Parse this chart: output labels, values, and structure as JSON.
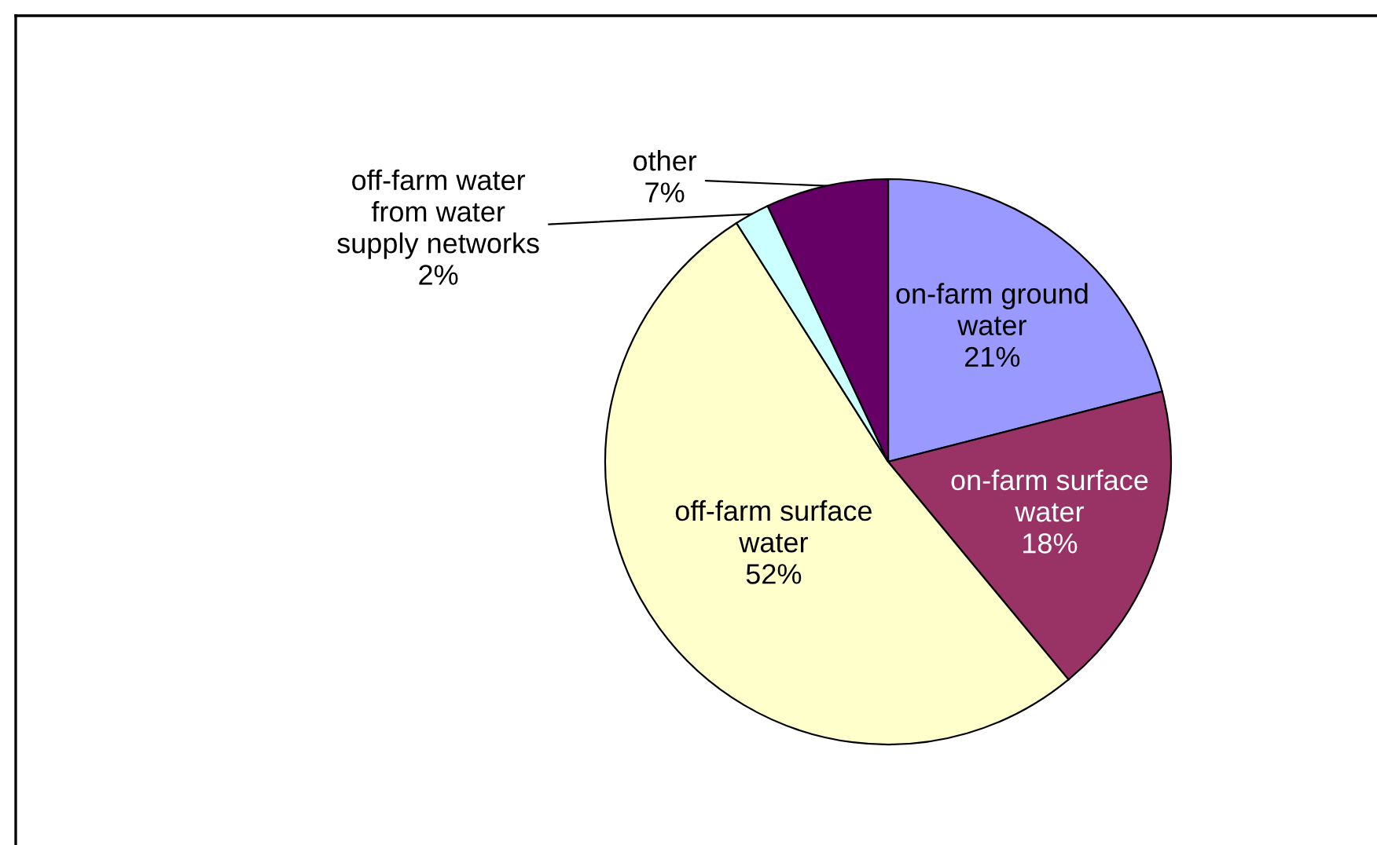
{
  "chart_data": {
    "type": "pie",
    "categories": [
      "on-farm ground water",
      "on-farm surface water",
      "off-farm surface water",
      "off-farm water from water supply networks",
      "other"
    ],
    "values": [
      21,
      18,
      52,
      2,
      7
    ],
    "colors": [
      "#9999ff",
      "#993366",
      "#ffffcc",
      "#ccffff",
      "#660066"
    ],
    "value_labels": [
      "21%",
      "18%",
      "52%",
      "2%",
      "7%"
    ],
    "legend": false
  }
}
